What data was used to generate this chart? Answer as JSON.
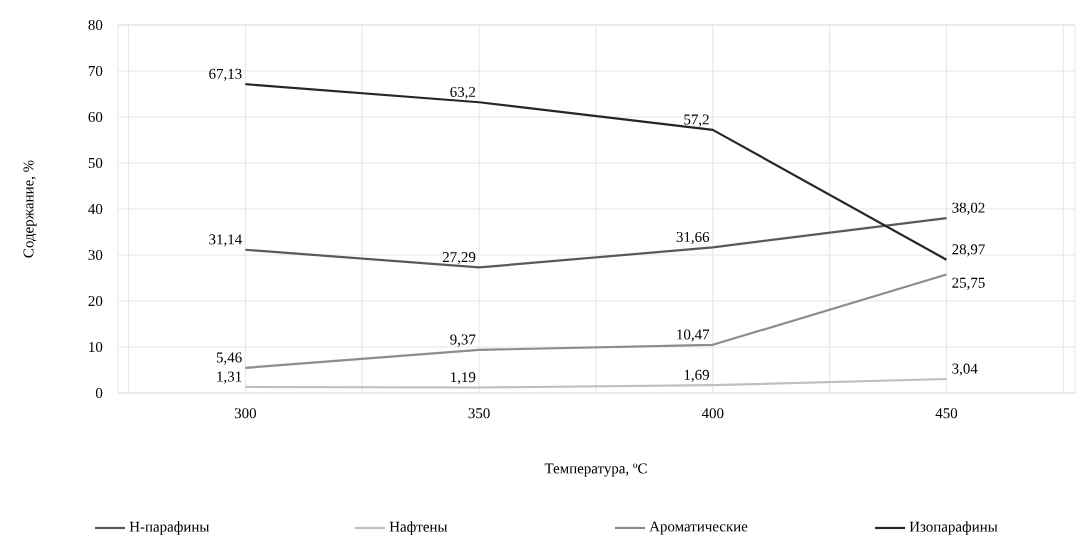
{
  "chart_data": {
    "type": "line",
    "xlabel": "Температура, ºС",
    "ylabel": "Содержание, %",
    "categories": [
      "300",
      "350",
      "400",
      "450"
    ],
    "ylim": [
      0,
      80
    ],
    "yticks": [
      0,
      10,
      20,
      30,
      40,
      50,
      60,
      70,
      80
    ],
    "grid": true,
    "legend": "bottom",
    "marker": "none",
    "line_style": "solid",
    "series": [
      {
        "name": "Н-парафины",
        "color": "#595959",
        "values": [
          31.14,
          27.29,
          31.66,
          38.02
        ],
        "value_labels": [
          "31,14",
          "27,29",
          "31,66",
          "38,02"
        ]
      },
      {
        "name": "Нафтены",
        "color": "#bfbfbf",
        "values": [
          1.31,
          1.19,
          1.69,
          3.04
        ],
        "value_labels": [
          "1,31",
          "1,19",
          "1,69",
          "3,04"
        ]
      },
      {
        "name": "Ароматические",
        "color": "#8c8c8c",
        "values": [
          5.46,
          9.37,
          10.47,
          25.75
        ],
        "value_labels": [
          "5,46",
          "9,37",
          "10,47",
          "25,75"
        ]
      },
      {
        "name": "Изопарафины",
        "color": "#262626",
        "values": [
          67.13,
          63.2,
          57.2,
          28.97
        ],
        "value_labels": [
          "67,13",
          "63,2",
          "57,2",
          "28,97"
        ]
      }
    ]
  }
}
